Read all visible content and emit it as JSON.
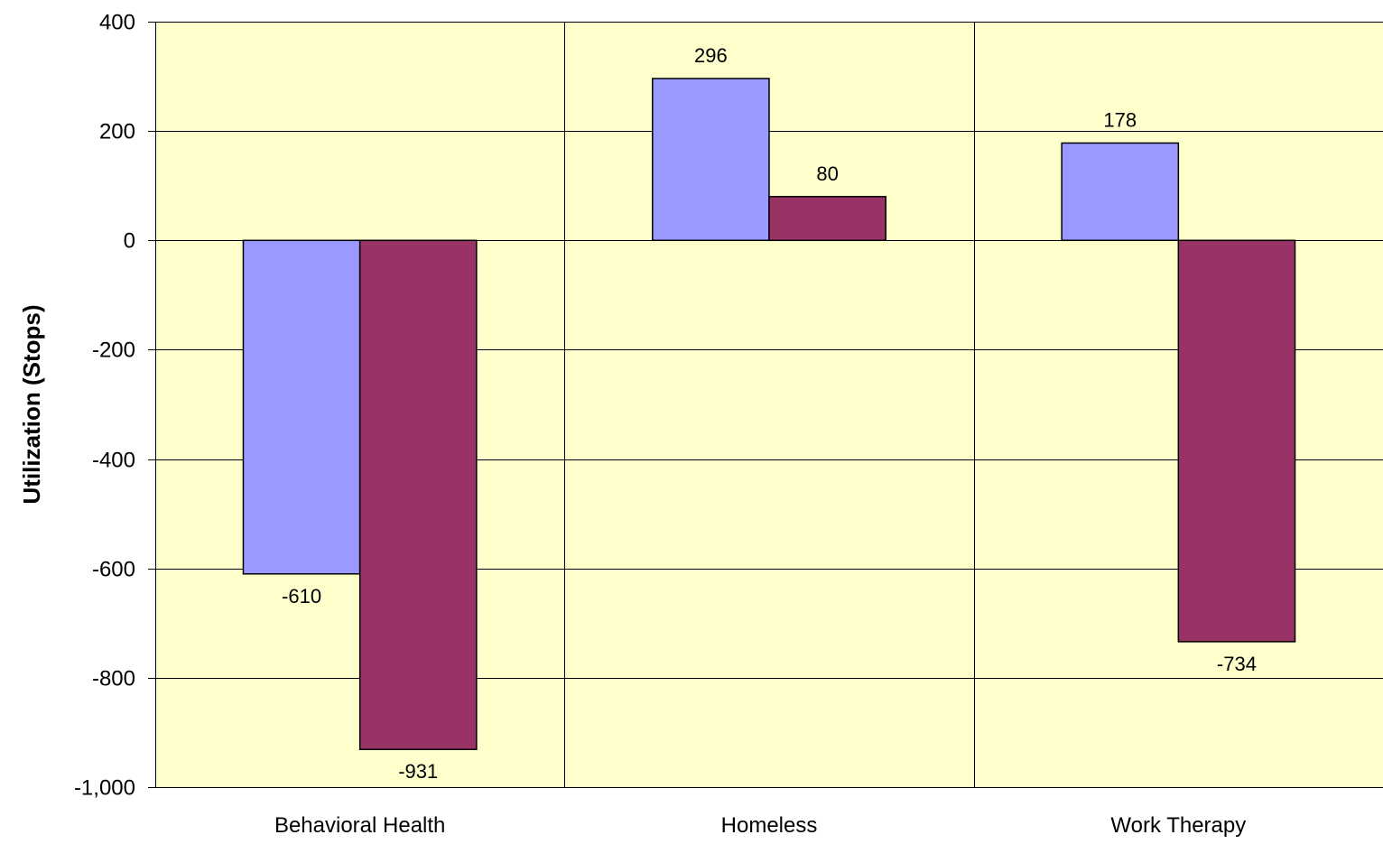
{
  "chart_data": {
    "type": "bar",
    "title": "",
    "xlabel": "",
    "ylabel": "Utilization (Stops)",
    "categories": [
      "Behavioral Health",
      "Homeless",
      "Work Therapy"
    ],
    "series": [
      {
        "values": [
          -610,
          296,
          178
        ],
        "color": "#9999ff"
      },
      {
        "values": [
          -931,
          80,
          -734
        ],
        "color": "#993366"
      }
    ],
    "ylim": [
      -1000,
      400
    ],
    "yticks": [
      400,
      200,
      0,
      -200,
      -400,
      -600,
      -800,
      -1000
    ],
    "ytick_labels": [
      "400",
      "200",
      "0",
      "-200",
      "-400",
      "-600",
      "-800",
      "-1,000"
    ],
    "data_labels": [
      [
        "-610",
        "296",
        "178"
      ],
      [
        "-931",
        "80",
        "-734"
      ]
    ],
    "grid": true,
    "plot_background": "#ffffcc",
    "legend": "none"
  }
}
